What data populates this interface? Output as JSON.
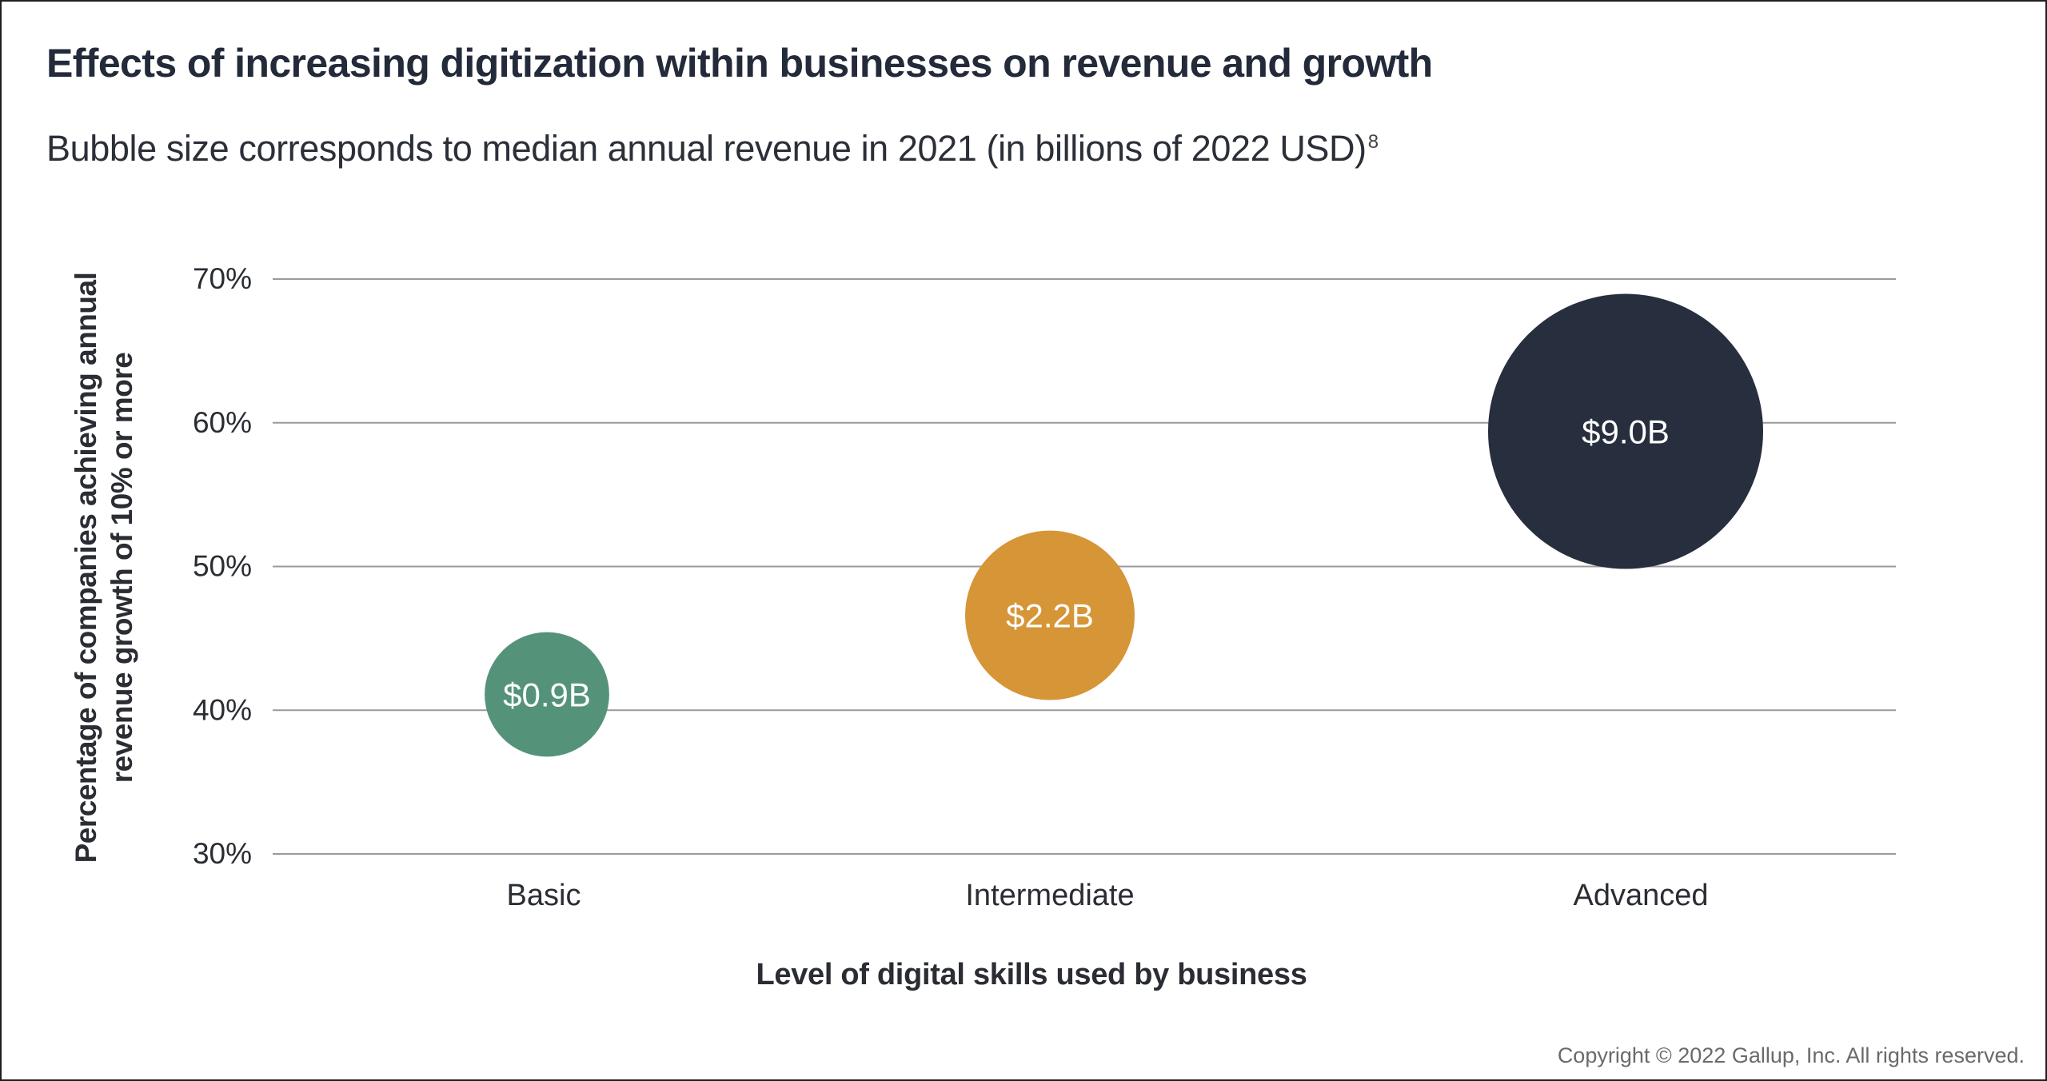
{
  "title": "Effects of increasing digitization within businesses on revenue and growth",
  "subtitle": "Bubble size corresponds to median annual revenue in 2021 (in billions of 2022 USD)",
  "subtitle_footnote": "8",
  "copyright": "Copyright © 2022 Gallup, Inc. All rights reserved.",
  "chart_data": {
    "type": "scatter",
    "subtype": "bubble",
    "title": "Effects of increasing digitization within businesses on revenue and growth",
    "subtitle": "Bubble size corresponds to median annual revenue in 2021 (in billions of 2022 USD)",
    "xlabel": "Level of digital skills used by business",
    "ylabel_lines": [
      "Percentage of companies achieving annual",
      "revenue growth of 10% or more"
    ],
    "ylabel": "Percentage of companies achieving annual revenue growth of 10% or more",
    "categories": [
      "Basic",
      "Intermediate",
      "Advanced"
    ],
    "ylim": [
      30,
      70
    ],
    "yticks": [
      30,
      40,
      50,
      60,
      70
    ],
    "ytick_labels": [
      "30%",
      "40%",
      "50%",
      "60%",
      "70%"
    ],
    "grid": true,
    "legend": "none",
    "points": [
      {
        "category": "Basic",
        "y": 41.1,
        "size_value": 0.9,
        "label": "$0.9B",
        "color": "#54937a"
      },
      {
        "category": "Intermediate",
        "y": 46.6,
        "size_value": 2.2,
        "label": "$2.2B",
        "color": "#d69537"
      },
      {
        "category": "Advanced",
        "y": 59.4,
        "size_value": 9.0,
        "label": "$9.0B",
        "color": "#272e3d"
      }
    ],
    "size_units": "billions of 2022 USD (median annual revenue, 2021)"
  }
}
